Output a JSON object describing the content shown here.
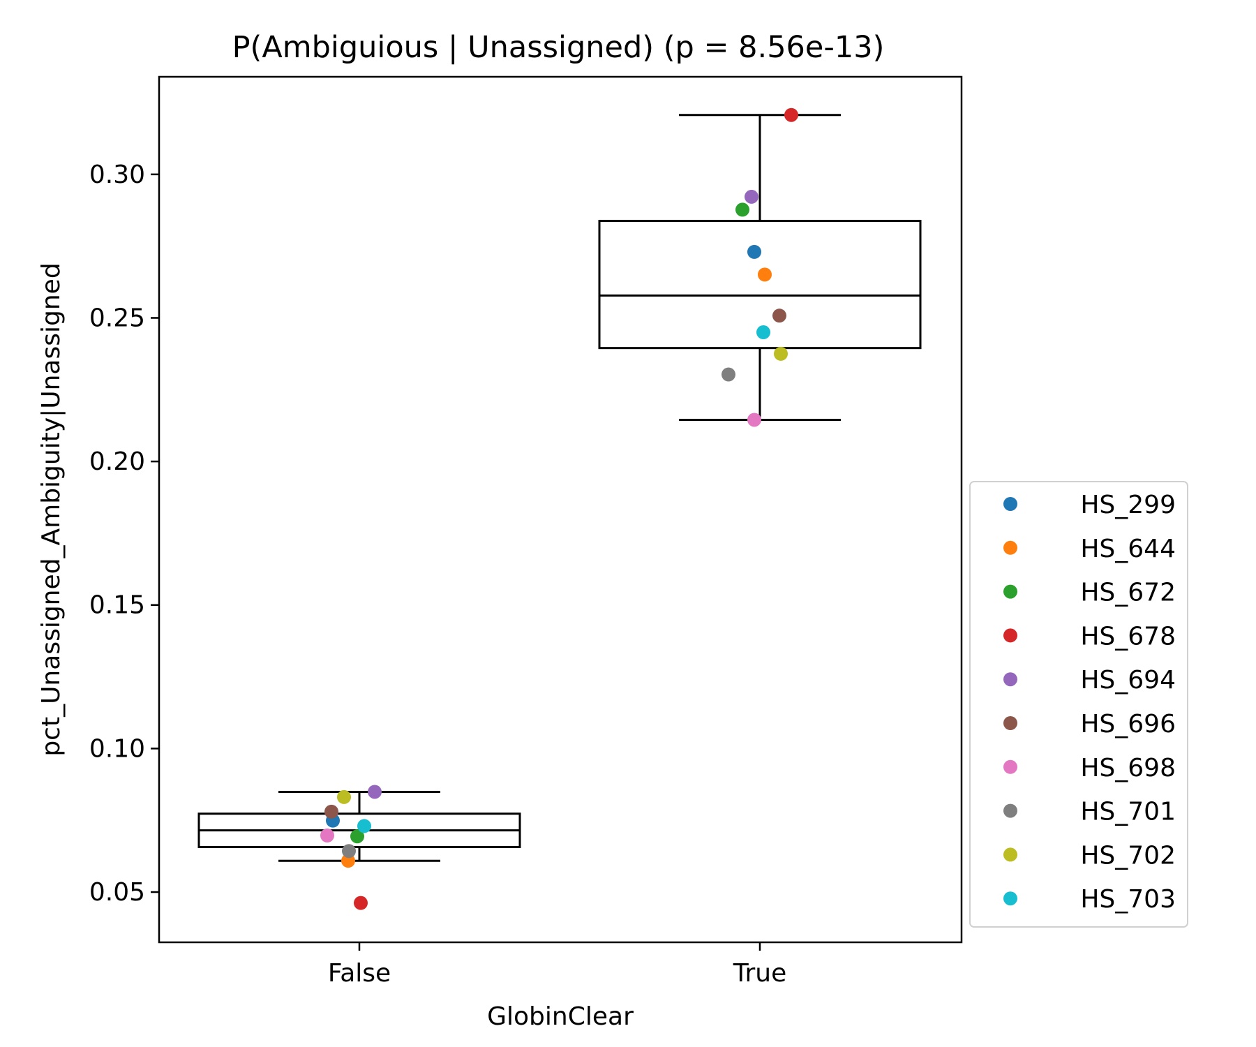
{
  "chart_data": {
    "type": "box",
    "title": "P(Ambiguious | Unassigned) (p = 8.56e-13)",
    "xlabel": "GlobinClear",
    "ylabel": "pct_Unassigned_Ambiguity|Unassigned",
    "categories": [
      "False",
      "True"
    ],
    "ylim": [
      0.0325,
      0.334
    ],
    "yticks": [
      0.05,
      0.1,
      0.15,
      0.2,
      0.25,
      0.3
    ],
    "ytick_labels": [
      "0.05",
      "0.10",
      "0.15",
      "0.20",
      "0.25",
      "0.30"
    ],
    "grid": false,
    "legend_position": "right",
    "boxes": [
      {
        "category": "False",
        "whisker_low": 0.0609,
        "q1": 0.0657,
        "median": 0.0715,
        "q3": 0.0773,
        "whisker_high": 0.0849
      },
      {
        "category": "True",
        "whisker_low": 0.2145,
        "q1": 0.2395,
        "median": 0.2578,
        "q3": 0.2838,
        "whisker_high": 0.3207
      }
    ],
    "series": [
      {
        "name": "HS_299",
        "color": "#1f77b4",
        "values": [
          0.0749,
          0.273
        ]
      },
      {
        "name": "HS_644",
        "color": "#ff7f0e",
        "values": [
          0.0609,
          0.2651
        ]
      },
      {
        "name": "HS_672",
        "color": "#2ca02c",
        "values": [
          0.0694,
          0.2877
        ]
      },
      {
        "name": "HS_678",
        "color": "#d62728",
        "values": [
          0.0462,
          0.3207
        ]
      },
      {
        "name": "HS_694",
        "color": "#9467bd",
        "values": [
          0.0849,
          0.2922
        ]
      },
      {
        "name": "HS_696",
        "color": "#8c564b",
        "values": [
          0.078,
          0.2508
        ]
      },
      {
        "name": "HS_698",
        "color": "#e377c2",
        "values": [
          0.0697,
          0.2145
        ]
      },
      {
        "name": "HS_701",
        "color": "#7f7f7f",
        "values": [
          0.0643,
          0.2303
        ]
      },
      {
        "name": "HS_702",
        "color": "#bcbd22",
        "values": [
          0.0831,
          0.2375
        ]
      },
      {
        "name": "HS_703",
        "color": "#17becf",
        "values": [
          0.073,
          0.245
        ]
      }
    ]
  }
}
